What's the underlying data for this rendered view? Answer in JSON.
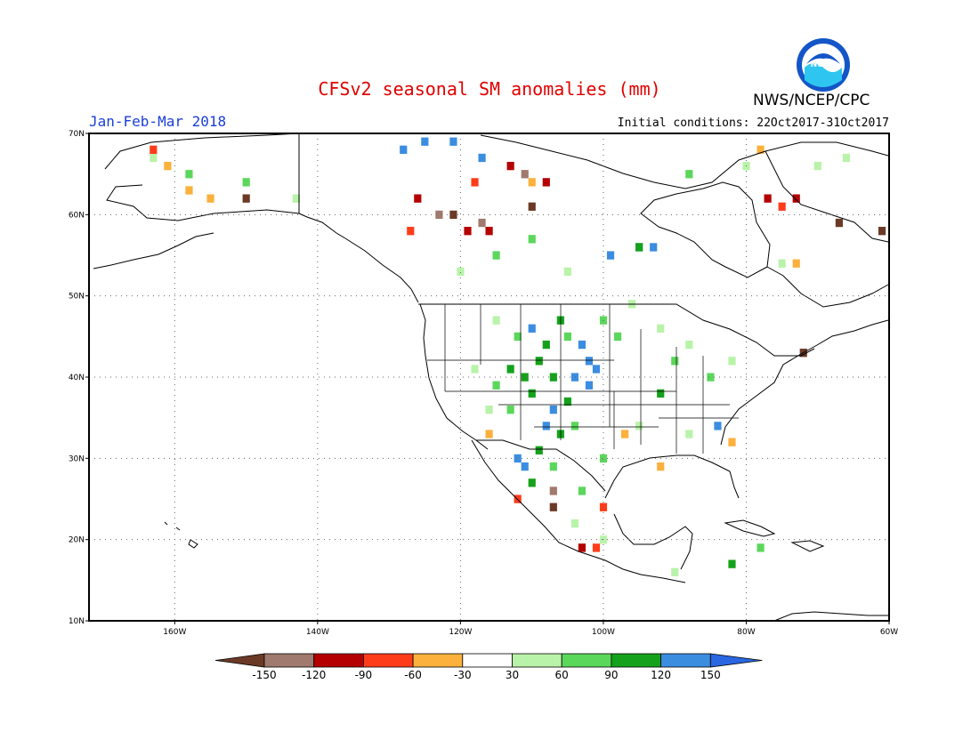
{
  "title": "CFSv2 seasonal SM anomalies (mm)",
  "period": "Jan-Feb-Mar 2018",
  "initial_conditions": "Initial conditions: 22Oct2017-31Oct2017",
  "agency": "NWS/NCEP/CPC",
  "logo_text": "NOAA",
  "map": {
    "lon_range": [
      -172,
      -60
    ],
    "lat_range": [
      10,
      70
    ],
    "lat_ticks": [
      "10N",
      "20N",
      "30N",
      "40N",
      "50N",
      "60N",
      "70N"
    ],
    "lon_ticks": [
      "160W",
      "140W",
      "120W",
      "100W",
      "80W",
      "60W"
    ],
    "grid": "dotted"
  },
  "legend": {
    "labels": [
      "-150",
      "-120",
      "-90",
      "-60",
      "-30",
      "30",
      "60",
      "90",
      "120",
      "150"
    ],
    "colors": [
      "#6b3a26",
      "#a07a6e",
      "#b40000",
      "#ff3c1a",
      "#fbb13c",
      "#ffffff",
      "#b9f3a9",
      "#5bd75b",
      "#15a11b",
      "#3b8de0",
      "#2a66e0"
    ]
  },
  "anomaly_cells": [
    {
      "lon": -103,
      "lat": 44,
      "cls": 9
    },
    {
      "lon": -102,
      "lat": 42,
      "cls": 9
    },
    {
      "lon": -101,
      "lat": 41,
      "cls": 9
    },
    {
      "lon": -104,
      "lat": 40,
      "cls": 9
    },
    {
      "lon": -102,
      "lat": 39,
      "cls": 9
    },
    {
      "lon": -110,
      "lat": 46,
      "cls": 9
    },
    {
      "lon": -107,
      "lat": 36,
      "cls": 9
    },
    {
      "lon": -108,
      "lat": 34,
      "cls": 9
    },
    {
      "lon": -112,
      "lat": 30,
      "cls": 9
    },
    {
      "lon": -111,
      "lat": 29,
      "cls": 9
    },
    {
      "lon": -99,
      "lat": 55,
      "cls": 9
    },
    {
      "lon": -95,
      "lat": 56,
      "cls": 9
    },
    {
      "lon": -93,
      "lat": 56,
      "cls": 9
    },
    {
      "lon": -128,
      "lat": 68,
      "cls": 9
    },
    {
      "lon": -125,
      "lat": 69,
      "cls": 9
    },
    {
      "lon": -121,
      "lat": 69,
      "cls": 9
    },
    {
      "lon": -117,
      "lat": 67,
      "cls": 9
    },
    {
      "lon": -84,
      "lat": 34,
      "cls": 9
    },
    {
      "lon": -106,
      "lat": 47,
      "cls": 8
    },
    {
      "lon": -108,
      "lat": 44,
      "cls": 8
    },
    {
      "lon": -109,
      "lat": 42,
      "cls": 8
    },
    {
      "lon": -111,
      "lat": 40,
      "cls": 8
    },
    {
      "lon": -110,
      "lat": 38,
      "cls": 8
    },
    {
      "lon": -107,
      "lat": 40,
      "cls": 8
    },
    {
      "lon": -105,
      "lat": 37,
      "cls": 8
    },
    {
      "lon": -106,
      "lat": 33,
      "cls": 8
    },
    {
      "lon": -109,
      "lat": 31,
      "cls": 8
    },
    {
      "lon": -110,
      "lat": 27,
      "cls": 8
    },
    {
      "lon": -113,
      "lat": 41,
      "cls": 8
    },
    {
      "lon": -95,
      "lat": 56,
      "cls": 8
    },
    {
      "lon": -92,
      "lat": 38,
      "cls": 8
    },
    {
      "lon": -82,
      "lat": 17,
      "cls": 8
    },
    {
      "lon": -112,
      "lat": 45,
      "cls": 7
    },
    {
      "lon": -105,
      "lat": 45,
      "cls": 7
    },
    {
      "lon": -100,
      "lat": 47,
      "cls": 7
    },
    {
      "lon": -98,
      "lat": 45,
      "cls": 7
    },
    {
      "lon": -115,
      "lat": 39,
      "cls": 7
    },
    {
      "lon": -113,
      "lat": 36,
      "cls": 7
    },
    {
      "lon": -104,
      "lat": 34,
      "cls": 7
    },
    {
      "lon": -100,
      "lat": 30,
      "cls": 7
    },
    {
      "lon": -107,
      "lat": 29,
      "cls": 7
    },
    {
      "lon": -103,
      "lat": 26,
      "cls": 7
    },
    {
      "lon": -90,
      "lat": 42,
      "cls": 7
    },
    {
      "lon": -85,
      "lat": 40,
      "cls": 7
    },
    {
      "lon": -115,
      "lat": 55,
      "cls": 7
    },
    {
      "lon": -110,
      "lat": 57,
      "cls": 7
    },
    {
      "lon": -88,
      "lat": 65,
      "cls": 7
    },
    {
      "lon": -78,
      "lat": 19,
      "cls": 7
    },
    {
      "lon": -158,
      "lat": 65,
      "cls": 7
    },
    {
      "lon": -150,
      "lat": 64,
      "cls": 7
    },
    {
      "lon": -115,
      "lat": 47,
      "cls": 6
    },
    {
      "lon": -96,
      "lat": 49,
      "cls": 6
    },
    {
      "lon": -92,
      "lat": 46,
      "cls": 6
    },
    {
      "lon": -88,
      "lat": 44,
      "cls": 6
    },
    {
      "lon": -82,
      "lat": 42,
      "cls": 6
    },
    {
      "lon": -118,
      "lat": 41,
      "cls": 6
    },
    {
      "lon": -116,
      "lat": 36,
      "cls": 6
    },
    {
      "lon": -95,
      "lat": 34,
      "cls": 6
    },
    {
      "lon": -88,
      "lat": 33,
      "cls": 6
    },
    {
      "lon": -104,
      "lat": 22,
      "cls": 6
    },
    {
      "lon": -100,
      "lat": 20,
      "cls": 6
    },
    {
      "lon": -90,
      "lat": 16,
      "cls": 6
    },
    {
      "lon": -120,
      "lat": 53,
      "cls": 6
    },
    {
      "lon": -105,
      "lat": 53,
      "cls": 6
    },
    {
      "lon": -80,
      "lat": 66,
      "cls": 6
    },
    {
      "lon": -70,
      "lat": 66,
      "cls": 6
    },
    {
      "lon": -66,
      "lat": 67,
      "cls": 6
    },
    {
      "lon": -143,
      "lat": 62,
      "cls": 6
    },
    {
      "lon": -163,
      "lat": 67,
      "cls": 6
    },
    {
      "lon": -75,
      "lat": 54,
      "cls": 6
    },
    {
      "lon": -116,
      "lat": 33,
      "cls": 4
    },
    {
      "lon": -97,
      "lat": 33,
      "cls": 4
    },
    {
      "lon": -92,
      "lat": 29,
      "cls": 4
    },
    {
      "lon": -82,
      "lat": 32,
      "cls": 4
    },
    {
      "lon": -155,
      "lat": 62,
      "cls": 4
    },
    {
      "lon": -158,
      "lat": 63,
      "cls": 4
    },
    {
      "lon": -161,
      "lat": 66,
      "cls": 4
    },
    {
      "lon": -110,
      "lat": 64,
      "cls": 4
    },
    {
      "lon": -73,
      "lat": 54,
      "cls": 4
    },
    {
      "lon": -78,
      "lat": 68,
      "cls": 4
    },
    {
      "lon": -103,
      "lat": 19,
      "cls": 4
    },
    {
      "lon": -100,
      "lat": 24,
      "cls": 3
    },
    {
      "lon": -118,
      "lat": 64,
      "cls": 3
    },
    {
      "lon": -127,
      "lat": 58,
      "cls": 3
    },
    {
      "lon": -163,
      "lat": 68,
      "cls": 3
    },
    {
      "lon": -112,
      "lat": 25,
      "cls": 3
    },
    {
      "lon": -75,
      "lat": 61,
      "cls": 3
    },
    {
      "lon": -101,
      "lat": 19,
      "cls": 3
    },
    {
      "lon": -119,
      "lat": 58,
      "cls": 2
    },
    {
      "lon": -116,
      "lat": 58,
      "cls": 2
    },
    {
      "lon": -113,
      "lat": 66,
      "cls": 2
    },
    {
      "lon": -108,
      "lat": 64,
      "cls": 2
    },
    {
      "lon": -126,
      "lat": 62,
      "cls": 2
    },
    {
      "lon": -77,
      "lat": 62,
      "cls": 2
    },
    {
      "lon": -73,
      "lat": 62,
      "cls": 2
    },
    {
      "lon": -103,
      "lat": 19,
      "cls": 2
    },
    {
      "lon": -107,
      "lat": 26,
      "cls": 1
    },
    {
      "lon": -117,
      "lat": 59,
      "cls": 1
    },
    {
      "lon": -123,
      "lat": 60,
      "cls": 1
    },
    {
      "lon": -111,
      "lat": 65,
      "cls": 1
    },
    {
      "lon": -121,
      "lat": 60,
      "cls": 0
    },
    {
      "lon": -110,
      "lat": 61,
      "cls": 0
    },
    {
      "lon": -150,
      "lat": 62,
      "cls": 0
    },
    {
      "lon": -107,
      "lat": 24,
      "cls": 0
    },
    {
      "lon": -72,
      "lat": 43,
      "cls": 0
    },
    {
      "lon": -67,
      "lat": 59,
      "cls": 0
    },
    {
      "lon": -61,
      "lat": 58,
      "cls": 0
    }
  ]
}
